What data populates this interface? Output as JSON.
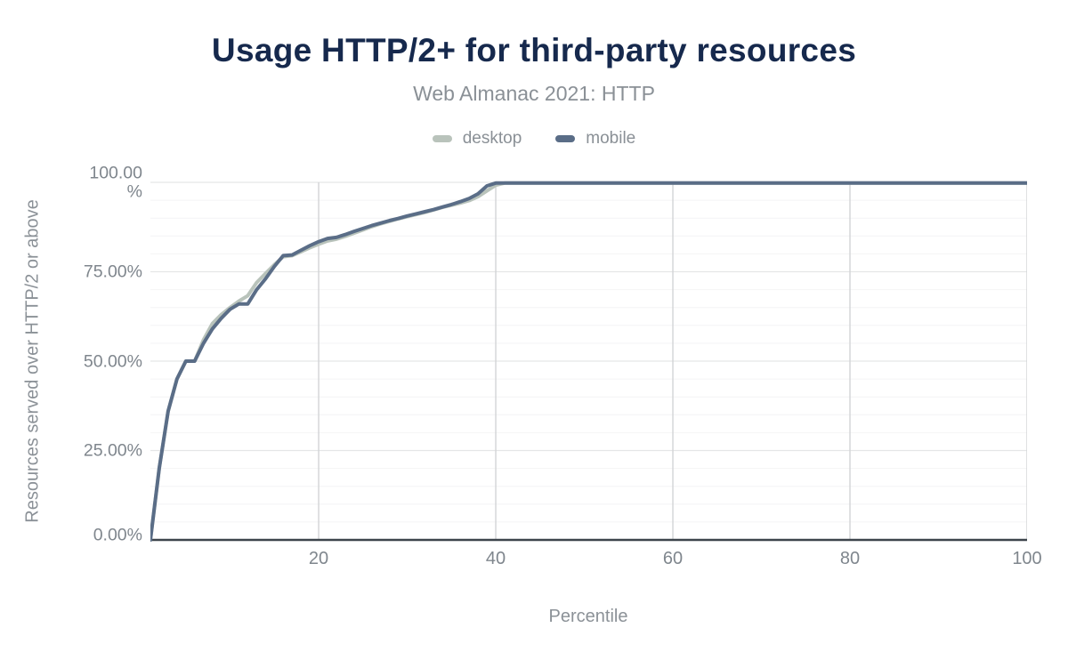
{
  "title": "Usage HTTP/2+ for third-party resources",
  "subtitle": "Web Almanac 2021: HTTP",
  "legend": [
    {
      "label": "desktop",
      "color": "#b9c3bb"
    },
    {
      "label": "mobile",
      "color": "#5a6d87"
    }
  ],
  "colors": {
    "title": "#16294d",
    "muted_text": "#8a9096",
    "tick_text": "#7f868d",
    "grid_minor": "#f4f4f5",
    "grid_major": "#e5e6e7",
    "grid_vertical": "#d2d4d6",
    "axis_line": "#3d444b"
  },
  "chart_data": {
    "type": "line",
    "title": "Usage HTTP/2+ for third-party resources",
    "subtitle": "Web Almanac 2021: HTTP",
    "xlabel": "Percentile",
    "ylabel": "Resources served over HTTP/2 or above",
    "xlim": [
      1,
      100
    ],
    "ylim": [
      0,
      100
    ],
    "grid": {
      "x_major_every": 20,
      "y_major_every": 25,
      "y_minor_every": 5
    },
    "legend_position": "top-center",
    "x_ticks": [
      "20",
      "40",
      "60",
      "80",
      "100"
    ],
    "x_tick_values": [
      20,
      40,
      60,
      80,
      100
    ],
    "y_ticks": [
      "100.00 %",
      "75.00%",
      "50.00%",
      "25.00%",
      "0.00%"
    ],
    "y_tick_values": [
      100,
      75,
      50,
      25,
      0
    ],
    "x": [
      1,
      2,
      3,
      4,
      5,
      6,
      7,
      8,
      9,
      10,
      11,
      12,
      13,
      14,
      15,
      16,
      17,
      18,
      19,
      20,
      21,
      22,
      23,
      24,
      25,
      26,
      27,
      28,
      29,
      30,
      31,
      32,
      33,
      34,
      35,
      36,
      37,
      38,
      39,
      40,
      41,
      42,
      43,
      44,
      45,
      46,
      47,
      48,
      49,
      50,
      51,
      52,
      53,
      54,
      55,
      56,
      57,
      58,
      59,
      60,
      61,
      62,
      63,
      64,
      65,
      66,
      67,
      68,
      69,
      70,
      71,
      72,
      73,
      74,
      75,
      76,
      77,
      78,
      79,
      80,
      81,
      82,
      83,
      84,
      85,
      86,
      87,
      88,
      89,
      90,
      91,
      92,
      93,
      94,
      95,
      96,
      97,
      98,
      99,
      100
    ],
    "series": [
      {
        "name": "desktop",
        "color": "#b9c3bb",
        "values": [
          0,
          20,
          36,
          45,
          50,
          50,
          56,
          60.5,
          63,
          65,
          66.8,
          68.3,
          72,
          74.5,
          77,
          79.2,
          79.5,
          80.6,
          81.7,
          82.7,
          83.6,
          84.1,
          84.9,
          85.8,
          86.7,
          87.6,
          88.4,
          89.1,
          89.8,
          90.4,
          91,
          91.6,
          92.3,
          93,
          93.6,
          94.2,
          94.9,
          96,
          97.6,
          99.2,
          99.8,
          99.8,
          99.8,
          99.8,
          99.8,
          99.8,
          99.8,
          99.8,
          99.8,
          99.8,
          99.8,
          99.8,
          99.8,
          99.8,
          99.8,
          99.8,
          99.8,
          99.8,
          99.8,
          99.8,
          99.8,
          99.8,
          99.8,
          99.8,
          99.8,
          99.8,
          99.8,
          99.8,
          99.8,
          99.8,
          99.8,
          99.8,
          99.8,
          99.8,
          99.8,
          99.8,
          99.8,
          99.8,
          99.8,
          99.8,
          99.8,
          99.8,
          99.8,
          99.8,
          99.8,
          99.8,
          99.8,
          99.8,
          99.8,
          99.8,
          99.8,
          99.8,
          99.8,
          99.8,
          99.8,
          99.8,
          99.8,
          99.8,
          99.8,
          99.8
        ]
      },
      {
        "name": "mobile",
        "color": "#5a6d87",
        "values": [
          0,
          20,
          36,
          45,
          50,
          50,
          55,
          59,
          62,
          64.5,
          66,
          66,
          70,
          73,
          76.5,
          79.5,
          79.7,
          81,
          82.3,
          83.4,
          84.3,
          84.6,
          85.4,
          86.3,
          87.1,
          87.9,
          88.6,
          89.3,
          89.9,
          90.6,
          91.2,
          91.8,
          92.4,
          93.1,
          93.8,
          94.6,
          95.5,
          96.8,
          99,
          99.8,
          99.8,
          99.8,
          99.8,
          99.8,
          99.8,
          99.8,
          99.8,
          99.8,
          99.8,
          99.8,
          99.8,
          99.8,
          99.8,
          99.8,
          99.8,
          99.8,
          99.8,
          99.8,
          99.8,
          99.8,
          99.8,
          99.8,
          99.8,
          99.8,
          99.8,
          99.8,
          99.8,
          99.8,
          99.8,
          99.8,
          99.8,
          99.8,
          99.8,
          99.8,
          99.8,
          99.8,
          99.8,
          99.8,
          99.8,
          99.8,
          99.8,
          99.8,
          99.8,
          99.8,
          99.8,
          99.8,
          99.8,
          99.8,
          99.8,
          99.8,
          99.8,
          99.8,
          99.8,
          99.8,
          99.8,
          99.8,
          99.8,
          99.8,
          99.8,
          99.8
        ]
      }
    ]
  }
}
